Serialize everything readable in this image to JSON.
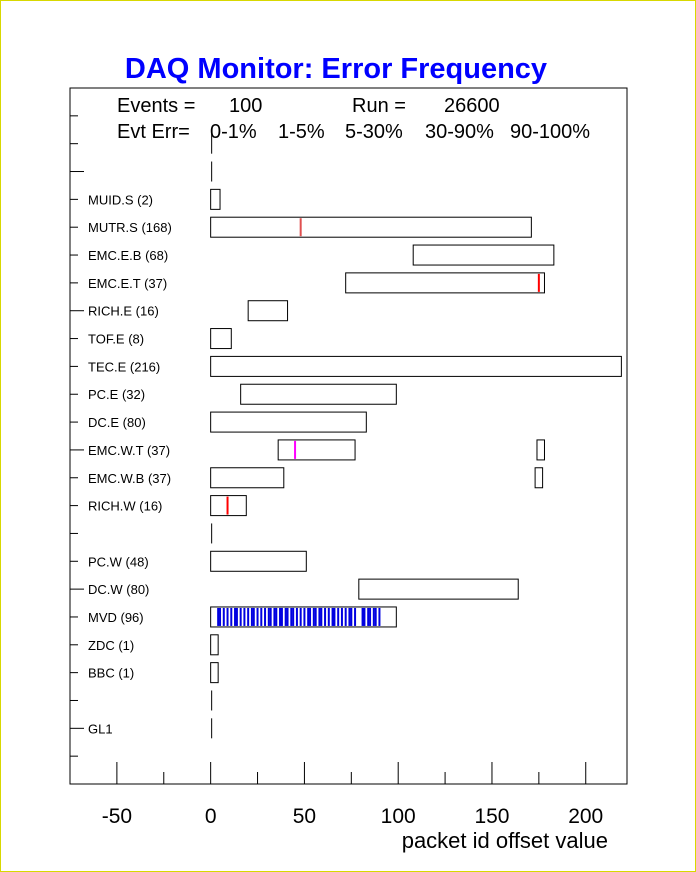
{
  "title": "DAQ Monitor: Error Frequency",
  "info": {
    "events_label": "Events =",
    "events_value": "100",
    "run_label": "Run =",
    "run_value": "26600",
    "err_label": "Evt Err=",
    "legend": [
      {
        "label": "0-1%",
        "color": "#ff0000"
      },
      {
        "label": "1-5%",
        "color": "#ff00ff"
      },
      {
        "label": "5-30%",
        "color": "#e05050"
      },
      {
        "label": "30-90%",
        "color": "#7f9fdf"
      },
      {
        "label": "90-100%",
        "color": "#0000e0"
      }
    ]
  },
  "colors": {
    "err_0_1": "#ff0000",
    "err_1_5": "#ff00ff",
    "err_5_30": "#e05050",
    "err_30_90": "#7f9fdf",
    "err_90_100": "#0000e0",
    "ytick": "#ffffff"
  },
  "chart_data": {
    "type": "bar",
    "xlabel": "packet id offset value",
    "xlim": [
      -75,
      222
    ],
    "ylim": [
      -2,
      23
    ],
    "xticks": [
      -50,
      0,
      50,
      100,
      150,
      200
    ],
    "yticks": [
      0,
      5,
      10,
      15,
      20
    ],
    "categories": [
      {
        "y": 0,
        "label": "GL1",
        "ranges": [
          [
            0,
            0
          ]
        ]
      },
      {
        "y": 1,
        "label": "",
        "ranges": [
          [
            0,
            0
          ]
        ]
      },
      {
        "y": 2,
        "label": "BBC  (1)",
        "ranges": [
          [
            0,
            4
          ]
        ]
      },
      {
        "y": 3,
        "label": "ZDC  (1)",
        "ranges": [
          [
            0,
            4
          ]
        ]
      },
      {
        "y": 4,
        "label": "MVD  (96)",
        "ranges": [
          [
            0,
            99
          ]
        ]
      },
      {
        "y": 5,
        "label": "DC.W  (80)",
        "ranges": [
          [
            79,
            164
          ]
        ]
      },
      {
        "y": 6,
        "label": "PC.W  (48)",
        "ranges": [
          [
            0,
            51
          ]
        ]
      },
      {
        "y": 7,
        "label": "",
        "ranges": [
          [
            0,
            0
          ]
        ]
      },
      {
        "y": 8,
        "label": "RICH.W  (16)",
        "ranges": [
          [
            0,
            19
          ]
        ]
      },
      {
        "y": 9,
        "label": "EMC.W.B  (37)",
        "ranges": [
          [
            0,
            39
          ],
          [
            173,
            177
          ]
        ]
      },
      {
        "y": 10,
        "label": "EMC.W.T  (37)",
        "ranges": [
          [
            36,
            77
          ],
          [
            174,
            178
          ]
        ]
      },
      {
        "y": 11,
        "label": "DC.E  (80)",
        "ranges": [
          [
            0,
            83
          ]
        ]
      },
      {
        "y": 12,
        "label": "PC.E  (32)",
        "ranges": [
          [
            16,
            99
          ]
        ]
      },
      {
        "y": 13,
        "label": "TEC.E  (216)",
        "ranges": [
          [
            0,
            219
          ]
        ]
      },
      {
        "y": 14,
        "label": "TOF.E  (8)",
        "ranges": [
          [
            0,
            11
          ]
        ]
      },
      {
        "y": 15,
        "label": "RICH.E  (16)",
        "ranges": [
          [
            20,
            41
          ]
        ]
      },
      {
        "y": 16,
        "label": "EMC.E.T  (37)",
        "ranges": [
          [
            72,
            178
          ]
        ]
      },
      {
        "y": 17,
        "label": "EMC.E.B  (68)",
        "ranges": [
          [
            108,
            183
          ]
        ]
      },
      {
        "y": 18,
        "label": "MUTR.S  (168)",
        "ranges": [
          [
            0,
            171
          ]
        ]
      },
      {
        "y": 19,
        "label": "MUID.S  (2)",
        "ranges": [
          [
            0,
            5
          ]
        ]
      },
      {
        "y": 20,
        "label": "",
        "ranges": [
          [
            0,
            0
          ]
        ]
      },
      {
        "y": 21,
        "label": "",
        "ranges": [
          [
            0,
            0
          ]
        ]
      }
    ],
    "errors": [
      {
        "y": 18,
        "x": 48,
        "level": "5-30%"
      },
      {
        "y": 16,
        "x": 175,
        "level": "0-1%"
      },
      {
        "y": 10,
        "x": 45,
        "level": "1-5%"
      },
      {
        "y": 8,
        "x": 9,
        "level": "0-1%"
      },
      {
        "y": 4,
        "level": "90-100%",
        "x": [
          4,
          5,
          7,
          9,
          11,
          13,
          14,
          16,
          18,
          20,
          22,
          23,
          25,
          27,
          29,
          31,
          32,
          34,
          35,
          37,
          38,
          40,
          41,
          43,
          44,
          46,
          48,
          50,
          52,
          53,
          55,
          56,
          58,
          59,
          61,
          63,
          65,
          66,
          68,
          70,
          72,
          74,
          75,
          77,
          81,
          82,
          84,
          85,
          87,
          88,
          90
        ]
      }
    ]
  }
}
